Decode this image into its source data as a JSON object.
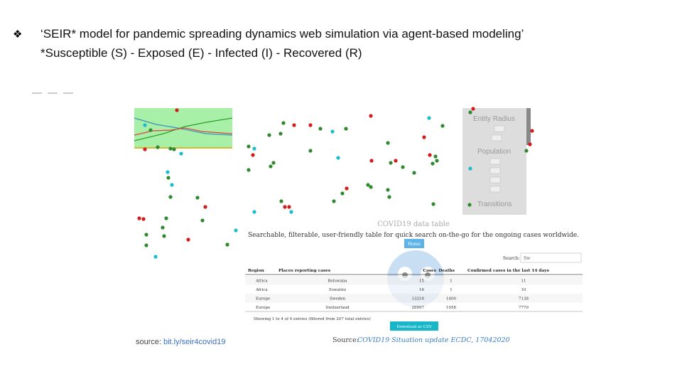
{
  "slide": {
    "bullet": {
      "title": "‘SEIR* model for pandemic spreading dynamics web simulation via agent-based modeling’",
      "subtitle": "*Susceptible (S) - Exposed (E) - Infected (I) - Recovered (R)"
    },
    "simulation": {
      "panel": {
        "entity_radius": "Entity Radius",
        "population": "Population",
        "transitions": "Transitions"
      },
      "source_label": "source:",
      "source_link": "bit.ly/seir4covid19"
    },
    "table_page": {
      "title": "COVID19 data table",
      "description": "Searchable, filterable, user-friendly table for quick search on-the-go for the ongoing cases worldwide.",
      "home": "Home",
      "search_label": "Search:",
      "search_value": "Sw",
      "table": {
        "header": [
          "Region",
          "Places reporting cases",
          "Cases",
          "Deaths",
          "Confirmed cases in the last 14 days"
        ],
        "rows": [
          [
            "Africa",
            "Botswana",
            "15",
            "1",
            "11"
          ],
          [
            "Africa",
            "Eswatini",
            "16",
            "1",
            "10"
          ],
          [
            "Europe",
            "Sweden",
            "13216",
            "1400",
            "7138"
          ],
          [
            "Europe",
            "Switzerland",
            "26997",
            "1058",
            "7770"
          ]
        ]
      },
      "info": "Showing 1 to 4 of 4 entries (filtered from 207 total entries)",
      "download": "Download as CSV",
      "source_label": "Source:",
      "source_link": "COVID19 Situation update ECDC, 17042020"
    }
  }
}
